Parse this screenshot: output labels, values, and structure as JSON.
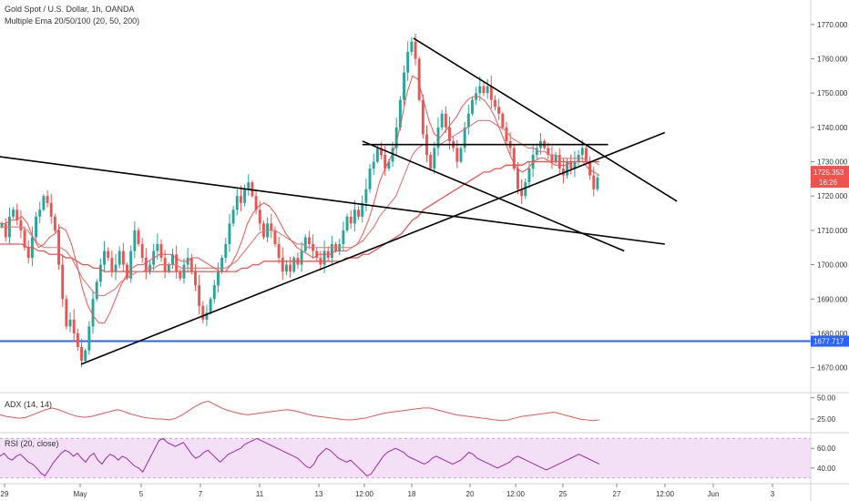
{
  "chart_data": {
    "type": "candlestick",
    "title": "Gold Spot / U.S. Dollar, 1h, OANDA",
    "indicator_label": "Multiple Ema 20/50/100 (20, 50, 200)",
    "price_axis": {
      "ylim": [
        1663,
        1775
      ],
      "ticks": [
        1670,
        1680,
        1690,
        1700,
        1710,
        1720,
        1730,
        1740,
        1750,
        1760,
        1770
      ],
      "tick_labels": [
        "1670.000",
        "1680.000",
        "1690.000",
        "1700.000",
        "1710.000",
        "1720.000",
        "1730.000",
        "1740.000",
        "1750.000",
        "1760.000",
        "1770.000"
      ],
      "last_price_label": "1725.353",
      "countdown_label": "16:26",
      "level_label": "1677.717"
    },
    "x_axis_labels": [
      "29",
      "May",
      "5",
      "7",
      "11",
      "13",
      "12:00",
      "18",
      "20",
      "12:00",
      "25",
      "27",
      "12:00",
      "Jun",
      "3"
    ],
    "horizontal_level": 1677.717,
    "ohlc_path": [
      1712,
      1708,
      1714,
      1716,
      1713,
      1710,
      1705,
      1702,
      1708,
      1714,
      1716,
      1720,
      1718,
      1714,
      1710,
      1700,
      1690,
      1682,
      1684,
      1680,
      1676,
      1672,
      1675,
      1682,
      1690,
      1695,
      1700,
      1704,
      1702,
      1698,
      1700,
      1704,
      1700,
      1696,
      1704,
      1710,
      1706,
      1702,
      1698,
      1700,
      1704,
      1706,
      1702,
      1698,
      1700,
      1703,
      1698,
      1696,
      1700,
      1702,
      1698,
      1694,
      1688,
      1684,
      1686,
      1690,
      1694,
      1698,
      1702,
      1706,
      1712,
      1716,
      1720,
      1718,
      1722,
      1724,
      1720,
      1716,
      1712,
      1708,
      1712,
      1710,
      1706,
      1702,
      1698,
      1700,
      1698,
      1702,
      1700,
      1704,
      1708,
      1706,
      1704,
      1702,
      1700,
      1704,
      1702,
      1706,
      1704,
      1706,
      1710,
      1714,
      1712,
      1716,
      1714,
      1718,
      1722,
      1728,
      1730,
      1734,
      1732,
      1728,
      1730,
      1734,
      1740,
      1748,
      1756,
      1762,
      1765,
      1760,
      1748,
      1738,
      1732,
      1728,
      1734,
      1740,
      1744,
      1740,
      1736,
      1734,
      1730,
      1734,
      1740,
      1744,
      1748,
      1750,
      1752,
      1750,
      1752,
      1748,
      1746,
      1744,
      1740,
      1736,
      1734,
      1728,
      1722,
      1720,
      1724,
      1728,
      1732,
      1734,
      1736,
      1734,
      1732,
      1730,
      1732,
      1728,
      1726,
      1730,
      1728,
      1730,
      1732,
      1734,
      1730,
      1726,
      1722,
      1725.353
    ],
    "ema_fast": [
      1712,
      1712,
      1713,
      1713,
      1714,
      1712,
      1708,
      1705,
      1706,
      1708,
      1709,
      1711,
      1710,
      1706,
      1700,
      1693,
      1688,
      1685,
      1683,
      1683,
      1686,
      1690,
      1694,
      1697,
      1699,
      1700,
      1700,
      1701,
      1702,
      1703,
      1703,
      1703,
      1702,
      1701,
      1701,
      1702,
      1702,
      1701,
      1700,
      1699,
      1698,
      1698,
      1700,
      1703,
      1707,
      1712,
      1715,
      1717,
      1718,
      1717,
      1715,
      1712,
      1709,
      1707,
      1705,
      1704,
      1703,
      1702,
      1703,
      1703,
      1703,
      1704,
      1704,
      1704,
      1705,
      1706,
      1709,
      1713,
      1718,
      1724,
      1728,
      1731,
      1735,
      1742,
      1750,
      1755,
      1754,
      1748,
      1742,
      1738,
      1737,
      1739,
      1741,
      1743,
      1746,
      1748,
      1749,
      1749,
      1748,
      1746,
      1743,
      1739,
      1735,
      1731,
      1728,
      1727,
      1728,
      1730,
      1731,
      1731,
      1730,
      1729,
      1729,
      1729,
      1730,
      1730,
      1730,
      1728,
      1727,
      1726
    ],
    "ema_mid": [
      1711,
      1711,
      1711,
      1711,
      1711,
      1710,
      1708,
      1706,
      1705,
      1705,
      1705,
      1705,
      1704,
      1702,
      1699,
      1696,
      1694,
      1692,
      1691,
      1691,
      1692,
      1693,
      1695,
      1696,
      1697,
      1698,
      1698,
      1699,
      1699,
      1700,
      1700,
      1700,
      1700,
      1699,
      1699,
      1699,
      1699,
      1699,
      1699,
      1699,
      1699,
      1699,
      1700,
      1701,
      1703,
      1705,
      1707,
      1709,
      1710,
      1710,
      1710,
      1709,
      1708,
      1707,
      1706,
      1706,
      1705,
      1705,
      1705,
      1705,
      1705,
      1705,
      1705,
      1705,
      1705,
      1706,
      1707,
      1709,
      1711,
      1714,
      1716,
      1718,
      1720,
      1724,
      1728,
      1732,
      1734,
      1735,
      1735,
      1735,
      1735,
      1736,
      1737,
      1738,
      1739,
      1740,
      1741,
      1742,
      1742,
      1742,
      1741,
      1740,
      1739,
      1737,
      1736,
      1735,
      1734,
      1734,
      1733,
      1733,
      1732,
      1732,
      1731,
      1731,
      1731,
      1731,
      1731,
      1730,
      1730,
      1729
    ],
    "ema_slow": [
      1706,
      1706,
      1706,
      1706,
      1706,
      1705,
      1705,
      1704,
      1704,
      1703,
      1703,
      1703,
      1702,
      1702,
      1701,
      1700,
      1700,
      1699,
      1699,
      1698,
      1698,
      1698,
      1698,
      1698,
      1698,
      1698,
      1698,
      1698,
      1698,
      1698,
      1698,
      1698,
      1698,
      1698,
      1698,
      1698,
      1698,
      1698,
      1698,
      1698,
      1698,
      1698,
      1698,
      1698,
      1699,
      1699,
      1700,
      1700,
      1701,
      1701,
      1701,
      1701,
      1701,
      1701,
      1701,
      1701,
      1701,
      1701,
      1701,
      1701,
      1701,
      1701,
      1701,
      1702,
      1702,
      1702,
      1703,
      1703,
      1704,
      1705,
      1706,
      1707,
      1708,
      1709,
      1711,
      1713,
      1714,
      1716,
      1717,
      1718,
      1719,
      1720,
      1721,
      1722,
      1723,
      1724,
      1725,
      1726,
      1727,
      1727,
      1728,
      1728,
      1729,
      1729,
      1729,
      1729,
      1730,
      1730,
      1730,
      1730,
      1730,
      1730,
      1730,
      1730,
      1730,
      1730,
      1730,
      1730,
      1730,
      1730
    ],
    "trendlines": [
      {
        "x0": -0.05,
        "y0": 1733,
        "x1": 0.82,
        "y1": 1706
      },
      {
        "x0": 0.1,
        "y0": 1671,
        "x1": 0.82,
        "y1": 1738.5
      },
      {
        "x0": 0.51,
        "y0": 1766,
        "x1": 0.835,
        "y1": 1718.5
      },
      {
        "x0": 0.447,
        "y0": 1736,
        "x1": 0.77,
        "y1": 1704
      },
      {
        "x0": 0.447,
        "y0": 1735,
        "x1": 0.75,
        "y1": 1735
      }
    ],
    "adx": {
      "label": "ADX (14, 14)",
      "ticks": [
        25,
        50
      ],
      "tick_labels": [
        "25.00",
        "50.00"
      ],
      "ylim": [
        10,
        55
      ],
      "values": [
        30,
        28,
        27,
        26,
        27,
        30,
        33,
        36,
        38,
        36,
        33,
        30,
        28,
        27,
        28,
        30,
        32,
        34,
        36,
        34,
        31,
        29,
        27,
        26,
        25,
        25,
        24,
        26,
        30,
        35,
        40,
        44,
        46,
        42,
        38,
        35,
        33,
        31,
        30,
        31,
        32,
        33,
        34,
        35,
        36,
        35,
        33,
        31,
        29,
        28,
        27,
        26,
        25,
        24,
        24,
        25,
        26,
        28,
        30,
        32,
        33,
        34,
        35,
        36,
        37,
        38,
        38,
        36,
        34,
        32,
        30,
        29,
        28,
        27,
        26,
        25,
        24,
        23,
        24,
        26,
        28,
        29,
        30,
        31,
        32,
        33,
        31,
        29,
        27,
        25,
        24,
        23,
        24
      ]
    },
    "rsi": {
      "label": "RSI (20, close)",
      "ticks": [
        40,
        60
      ],
      "tick_labels": [
        "40.00",
        "60.00"
      ],
      "ylim": [
        25,
        75
      ],
      "band": [
        30,
        70
      ],
      "values": [
        52,
        55,
        50,
        48,
        52,
        54,
        50,
        46,
        44,
        40,
        35,
        32,
        38,
        45,
        50,
        55,
        58,
        56,
        52,
        55,
        50,
        46,
        52,
        55,
        48,
        44,
        50,
        54,
        52,
        48,
        52,
        50,
        46,
        42,
        40,
        36,
        44,
        52,
        60,
        68,
        70,
        66,
        64,
        62,
        64,
        66,
        60,
        54,
        50,
        52,
        56,
        58,
        54,
        50,
        46,
        50,
        54,
        56,
        58,
        60,
        64,
        66,
        68,
        70,
        68,
        66,
        64,
        62,
        60,
        58,
        56,
        54,
        52,
        50,
        46,
        42,
        40,
        44,
        52,
        56,
        60,
        58,
        54,
        50,
        48,
        46,
        48,
        44,
        40,
        36,
        32,
        34,
        40,
        46,
        52,
        56,
        58,
        60,
        58,
        56,
        52,
        50,
        48,
        46,
        44,
        46,
        50,
        52,
        50,
        48,
        46,
        44,
        46,
        48,
        52,
        56,
        54,
        50,
        48,
        46,
        44,
        42,
        40,
        42,
        44,
        46,
        50,
        52,
        50,
        48,
        46,
        44,
        42,
        40,
        38,
        40,
        42,
        44,
        46,
        48,
        50,
        52,
        54,
        52,
        50,
        48,
        46,
        44
      ]
    },
    "colors": {
      "up": "#26a69a",
      "down": "#ef5350",
      "ema_fast": "#ef5350",
      "ema_mid": "#e57373",
      "ema_slow": "#ef5350",
      "level": "#2962ff",
      "trendline": "#000000",
      "indicator": "#ef5350",
      "rsi_line": "#9c27b0",
      "rsi_band": "#f3e0f7",
      "last_price_bg": "#ef5350"
    }
  }
}
